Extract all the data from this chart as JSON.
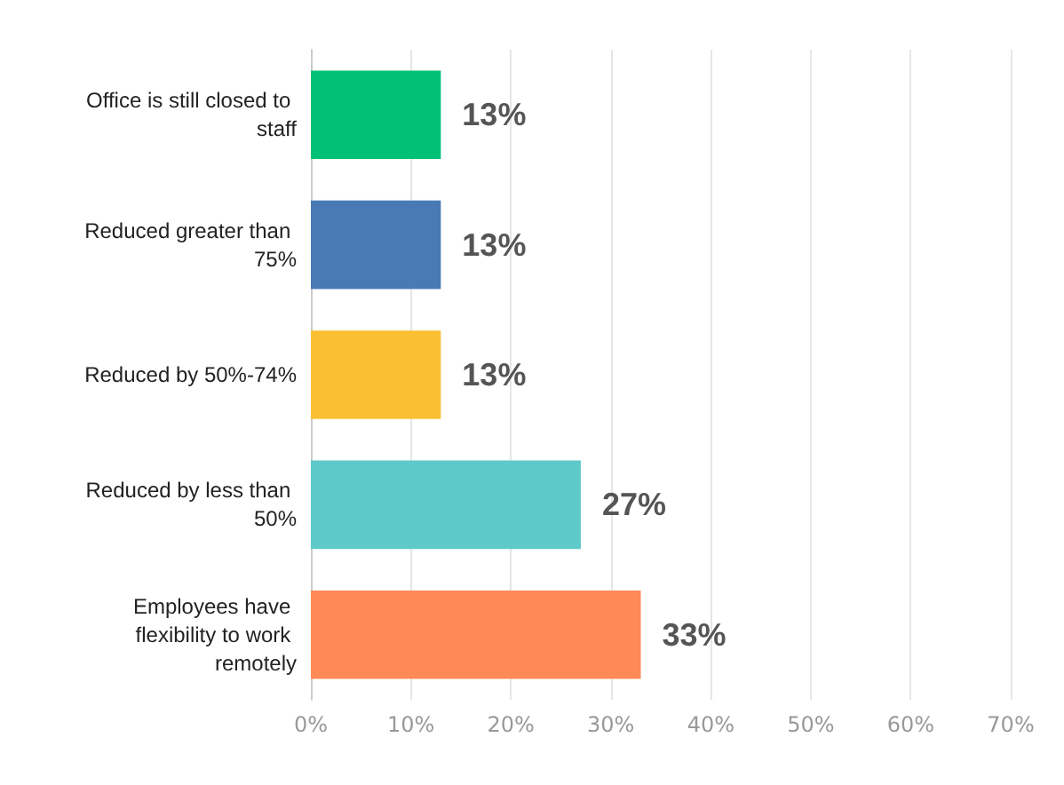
{
  "chart_data": {
    "type": "bar",
    "orientation": "horizontal",
    "categories": [
      "Office is still closed to staff",
      "Reduced greater than 75%",
      "Reduced by 50%-74%",
      "Reduced by less than 50%",
      "Employees have flexibility to work remotely"
    ],
    "values": [
      13,
      13,
      13,
      27,
      33
    ],
    "colors": [
      "#00c176",
      "#4a7ab5",
      "#fbbf33",
      "#5fc9c9",
      "#ff8a57"
    ],
    "value_labels": [
      "13%",
      "13%",
      "13%",
      "27%",
      "33%"
    ],
    "xlim": [
      0,
      70
    ],
    "xticks": [
      {
        "value": 0,
        "label": "0%"
      },
      {
        "value": 10,
        "label": "10%"
      },
      {
        "value": 20,
        "label": "20%"
      },
      {
        "value": 30,
        "label": "30%"
      },
      {
        "value": 40,
        "label": "40%"
      },
      {
        "value": 50,
        "label": "50%"
      },
      {
        "value": 60,
        "label": "60%"
      },
      {
        "value": 70,
        "label": "70%"
      }
    ],
    "grid": "x"
  }
}
